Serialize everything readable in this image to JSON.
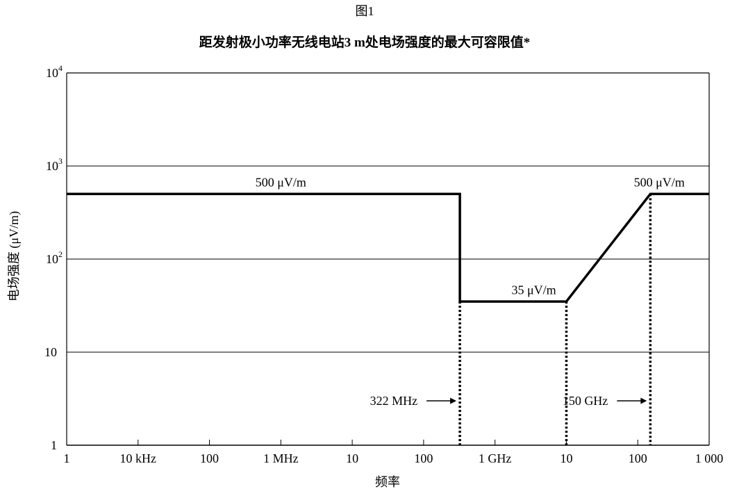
{
  "chart_data": {
    "type": "line",
    "figure_label": "图1",
    "title": "距发射极小功率无线电站3 m处电场强度的最大可容限值*",
    "xlabel": "频率",
    "ylabel": "电场强度 (μV/m)",
    "x_scale": "log",
    "y_scale": "log",
    "xlim_hz": [
      1000,
      1000000000000
    ],
    "ylim": [
      1,
      10000
    ],
    "grid": "horizontal",
    "x_ticks": [
      {
        "hz": 1000,
        "label": "1"
      },
      {
        "hz": 10000,
        "label": "10 kHz"
      },
      {
        "hz": 100000,
        "label": "100"
      },
      {
        "hz": 1000000,
        "label": "1 MHz"
      },
      {
        "hz": 10000000,
        "label": "10"
      },
      {
        "hz": 100000000,
        "label": "100"
      },
      {
        "hz": 1000000000,
        "label": "1 GHz"
      },
      {
        "hz": 10000000000,
        "label": "10"
      },
      {
        "hz": 100000000000,
        "label": "100"
      },
      {
        "hz": 1000000000000,
        "label": "1 000"
      }
    ],
    "y_ticks": [
      {
        "value": 1,
        "label": "1",
        "exp": ""
      },
      {
        "value": 10,
        "label": "10",
        "exp": ""
      },
      {
        "value": 100,
        "label": "10",
        "exp": "2"
      },
      {
        "value": 1000,
        "label": "10",
        "exp": "3"
      },
      {
        "value": 10000,
        "label": "10",
        "exp": "4"
      }
    ],
    "series": [
      {
        "points": [
          {
            "x_hz": 1000,
            "y": 500
          },
          {
            "x_hz": 322000000,
            "y": 500
          },
          {
            "x_hz": 322000000,
            "y": 35
          },
          {
            "x_hz": 10000000000,
            "y": 35
          },
          {
            "x_hz": 150000000000,
            "y": 500
          },
          {
            "x_hz": 1000000000000,
            "y": 500
          }
        ]
      }
    ],
    "markers": [
      {
        "x_hz": 322000000,
        "y_top": 35,
        "label": "322 MHz",
        "label_y": 3
      },
      {
        "x_hz": 10000000000,
        "y_top": 35,
        "label": "",
        "label_y": 3
      },
      {
        "x_hz": 150000000000,
        "y_top": 500,
        "label": "150 GHz",
        "label_y": 3
      }
    ],
    "annotations": [
      {
        "text": "500 μV/m",
        "x_hz": 1000000,
        "y": 600,
        "anchor": "middle"
      },
      {
        "text": "35 μV/m",
        "x_hz": 3500000000,
        "y": 42,
        "anchor": "middle"
      },
      {
        "text": "500 μV/m",
        "x_hz": 200000000000,
        "y": 600,
        "anchor": "middle"
      }
    ]
  }
}
